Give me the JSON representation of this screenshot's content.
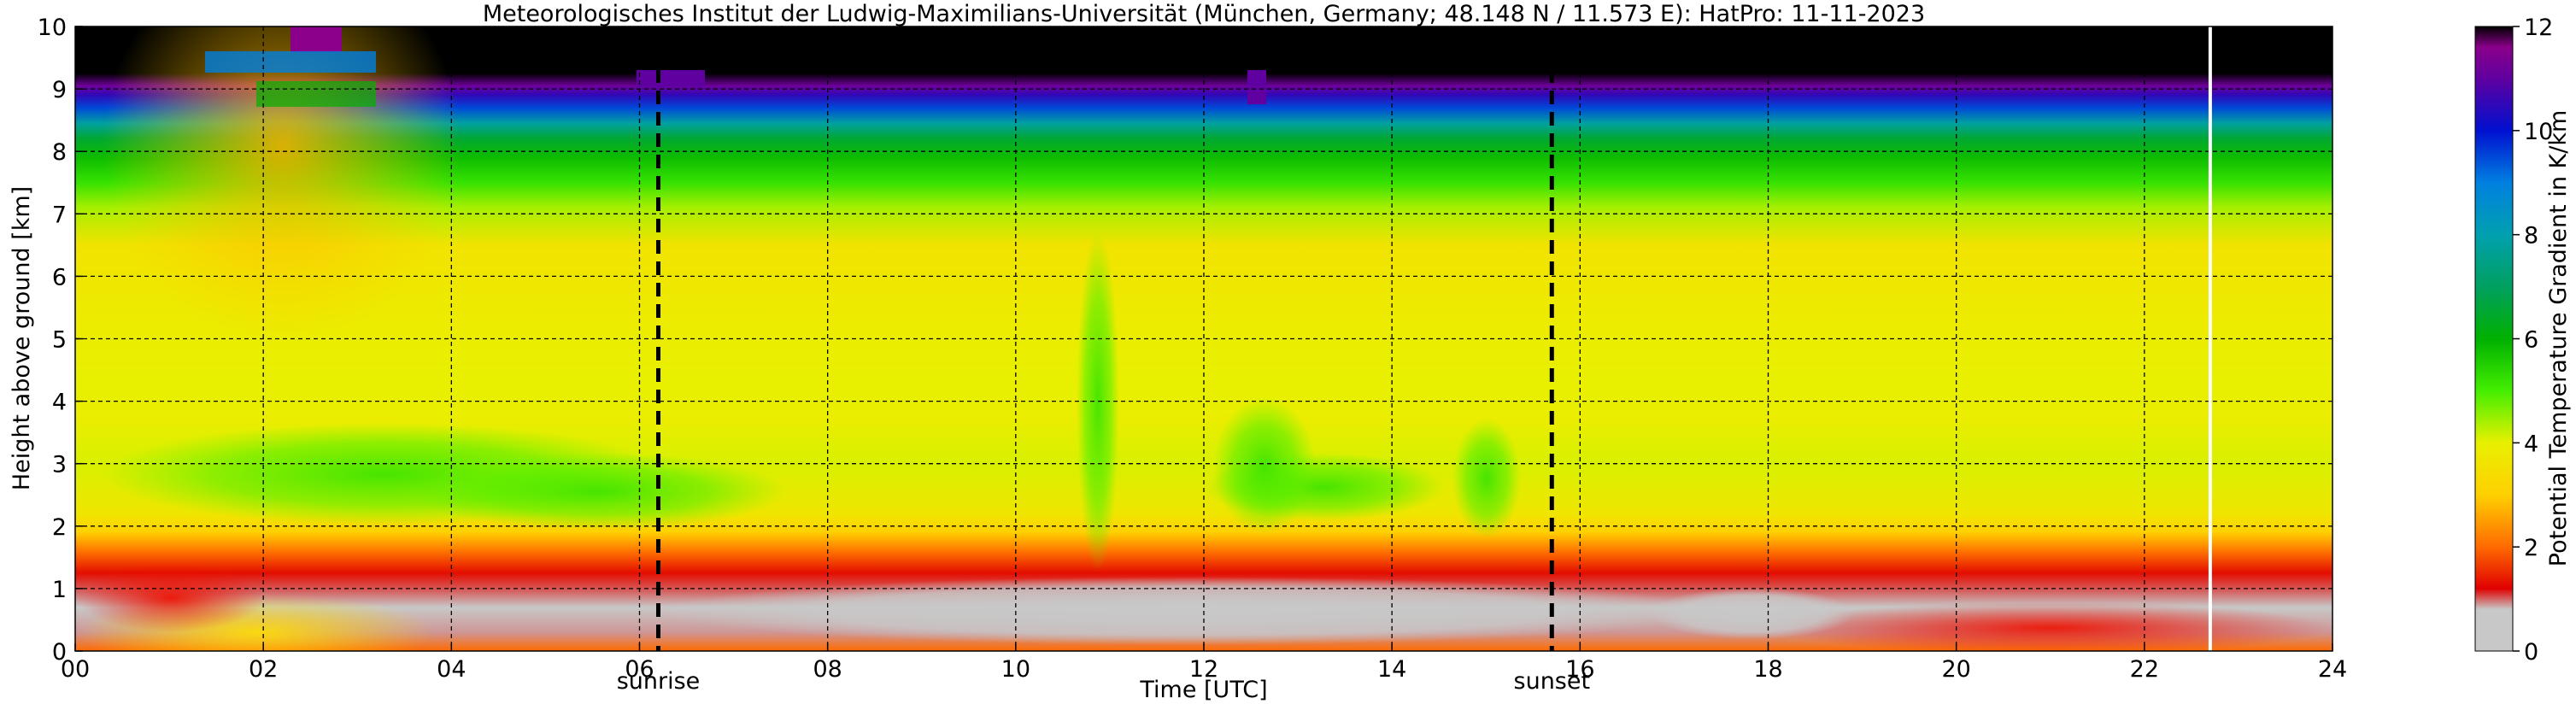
{
  "chart_data": {
    "type": "heatmap",
    "title": "Meteorologisches Institut der Ludwig-Maximilians-Universität (München, Germany; 48.148 N / 11.573 E):    HatPro: 11-11-2023",
    "xlabel": "Time [UTC]",
    "ylabel": "Height above ground [km]",
    "colorbar_label": "Potential Temperature Gradient in K/km",
    "xlim": [
      0,
      24
    ],
    "ylim": [
      0,
      10
    ],
    "clim": [
      0,
      12
    ],
    "grid": true,
    "x_ticks": [
      0,
      2,
      4,
      6,
      8,
      10,
      12,
      14,
      16,
      18,
      20,
      22,
      24
    ],
    "x_tick_labels": [
      "00",
      "02",
      "04",
      "06",
      "08",
      "10",
      "12",
      "14",
      "16",
      "18",
      "20",
      "22",
      "24"
    ],
    "y_ticks": [
      0,
      1,
      2,
      3,
      4,
      5,
      6,
      7,
      8,
      9,
      10
    ],
    "y_tick_labels": [
      "0",
      "1",
      "2",
      "3",
      "4",
      "5",
      "6",
      "7",
      "8",
      "9",
      "10"
    ],
    "colorbar_ticks": [
      0,
      2,
      4,
      6,
      8,
      10,
      12
    ],
    "colorbar_tick_labels": [
      "0",
      "2",
      "4",
      "6",
      "8",
      "10",
      "12"
    ],
    "colormap": [
      {
        "v": 0.0,
        "c": "#c8c8c8"
      },
      {
        "v": 0.8,
        "c": "#c8c8c8"
      },
      {
        "v": 1.2,
        "c": "#e00000"
      },
      {
        "v": 2.0,
        "c": "#ff6a00"
      },
      {
        "v": 3.0,
        "c": "#ffd000"
      },
      {
        "v": 4.0,
        "c": "#e8f000"
      },
      {
        "v": 5.0,
        "c": "#44ee00"
      },
      {
        "v": 6.0,
        "c": "#00b000"
      },
      {
        "v": 7.0,
        "c": "#00a060"
      },
      {
        "v": 8.0,
        "c": "#00a0b0"
      },
      {
        "v": 9.0,
        "c": "#0080e0"
      },
      {
        "v": 10.0,
        "c": "#0010d0"
      },
      {
        "v": 11.0,
        "c": "#6000a0"
      },
      {
        "v": 11.6,
        "c": "#8a008a"
      },
      {
        "v": 12.0,
        "c": "#000000"
      }
    ],
    "profile": [
      {
        "h": 0.0,
        "v": 2.0
      },
      {
        "h": 0.3,
        "v": 0.9
      },
      {
        "h": 0.7,
        "v": 0.4
      },
      {
        "h": 0.95,
        "v": 1.0
      },
      {
        "h": 1.25,
        "v": 1.3
      },
      {
        "h": 1.6,
        "v": 2.1
      },
      {
        "h": 1.9,
        "v": 3.0
      },
      {
        "h": 2.2,
        "v": 3.7
      },
      {
        "h": 3.0,
        "v": 4.1
      },
      {
        "h": 3.7,
        "v": 3.9
      },
      {
        "h": 4.3,
        "v": 4.0
      },
      {
        "h": 5.5,
        "v": 3.8
      },
      {
        "h": 6.5,
        "v": 3.6
      },
      {
        "h": 7.1,
        "v": 4.4
      },
      {
        "h": 7.5,
        "v": 5.2
      },
      {
        "h": 7.9,
        "v": 5.8
      },
      {
        "h": 8.2,
        "v": 6.5
      },
      {
        "h": 8.45,
        "v": 7.8
      },
      {
        "h": 8.7,
        "v": 9.5
      },
      {
        "h": 8.9,
        "v": 10.5
      },
      {
        "h": 9.05,
        "v": 11.2
      },
      {
        "h": 9.25,
        "v": 12.0
      },
      {
        "h": 10.0,
        "v": 12.0
      }
    ],
    "reference_lines": [
      {
        "x": 6.2,
        "label": "sunrise",
        "style": "dashed",
        "color": "#000000"
      },
      {
        "x": 15.7,
        "label": "sunset",
        "style": "dashed",
        "color": "#000000"
      },
      {
        "x": 22.7,
        "label": "",
        "style": "solid",
        "color": "#ffffff"
      }
    ]
  }
}
